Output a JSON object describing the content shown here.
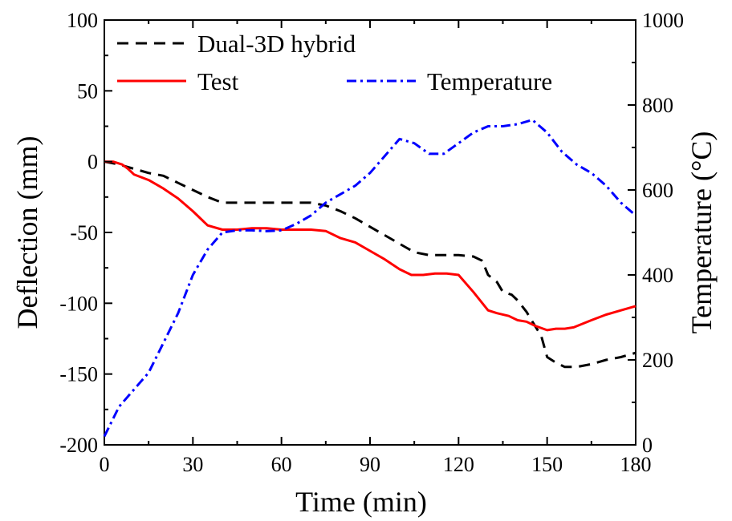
{
  "chart_data": {
    "type": "line",
    "title": "",
    "xlabel": "Time (min)",
    "ylabel": "Deflection (mm)",
    "y2label": "Temperature (°C)",
    "xlim": [
      0,
      180
    ],
    "ylim": [
      -200,
      100
    ],
    "y2lim": [
      0,
      1000
    ],
    "xticks": [
      0,
      30,
      60,
      90,
      120,
      150,
      180
    ],
    "xtick_labels": [
      "0",
      "30",
      "60",
      "90",
      "120",
      "150",
      "180"
    ],
    "yticks": [
      -200,
      -150,
      -100,
      -50,
      0,
      50,
      100
    ],
    "ytick_labels": [
      "-200",
      "-150",
      "-100",
      "-50",
      "0",
      "50",
      "100"
    ],
    "y2ticks": [
      0,
      200,
      400,
      600,
      800,
      1000
    ],
    "y2tick_labels": [
      "0",
      "200",
      "400",
      "600",
      "800",
      "1000"
    ],
    "grid": false,
    "legend_position": "top",
    "series": [
      {
        "name": "Dual-3D hybrid",
        "axis": "left",
        "color": "#000000",
        "dash": "dashed",
        "x": [
          0,
          5,
          10,
          15,
          20,
          25,
          30,
          35,
          40,
          45,
          50,
          55,
          60,
          65,
          70,
          75,
          80,
          85,
          90,
          95,
          100,
          105,
          110,
          115,
          120,
          125,
          128,
          130,
          133,
          135,
          138,
          140,
          143,
          145,
          148,
          150,
          153,
          156,
          160,
          165,
          170,
          175,
          180
        ],
        "y": [
          0,
          -2,
          -5,
          -8,
          -10,
          -15,
          -20,
          -25,
          -29,
          -29,
          -29,
          -29,
          -29,
          -29,
          -29,
          -31,
          -35,
          -40,
          -46,
          -52,
          -58,
          -64,
          -66,
          -66,
          -66,
          -67,
          -70,
          -80,
          -85,
          -92,
          -94,
          -98,
          -106,
          -113,
          -123,
          -138,
          -142,
          -145,
          -145,
          -143,
          -140,
          -138,
          -135
        ]
      },
      {
        "name": "Test",
        "axis": "left",
        "color": "#ff0000",
        "dash": "solid",
        "x": [
          0,
          3,
          6,
          8,
          10,
          15,
          20,
          25,
          30,
          35,
          40,
          45,
          50,
          55,
          60,
          65,
          70,
          75,
          80,
          85,
          90,
          95,
          100,
          104,
          108,
          112,
          116,
          120,
          125,
          130,
          133,
          137,
          140,
          143,
          146,
          150,
          153,
          156,
          159,
          165,
          170,
          175,
          180
        ],
        "y": [
          0,
          0,
          -2,
          -5,
          -9,
          -13,
          -19,
          -26,
          -35,
          -45,
          -48,
          -48,
          -47,
          -47,
          -48,
          -48,
          -48,
          -49,
          -54,
          -57,
          -63,
          -69,
          -76,
          -80,
          -80,
          -79,
          -79,
          -80,
          -92,
          -105,
          -107,
          -109,
          -112,
          -113,
          -116,
          -119,
          -118,
          -118,
          -117,
          -112,
          -108,
          -105,
          -102
        ]
      },
      {
        "name": "Temperature",
        "axis": "right",
        "color": "#0000ff",
        "dash": "dashdot",
        "x": [
          0,
          5,
          10,
          15,
          20,
          25,
          30,
          35,
          40,
          45,
          50,
          55,
          60,
          65,
          70,
          75,
          80,
          85,
          90,
          95,
          100,
          105,
          110,
          115,
          120,
          125,
          130,
          135,
          140,
          145,
          150,
          155,
          160,
          165,
          170,
          175,
          180
        ],
        "y": [
          20,
          90,
          130,
          170,
          240,
          310,
          400,
          460,
          500,
          505,
          505,
          503,
          505,
          520,
          540,
          570,
          590,
          610,
          640,
          680,
          720,
          710,
          685,
          685,
          710,
          735,
          750,
          750,
          755,
          765,
          735,
          690,
          660,
          640,
          610,
          570,
          540
        ]
      }
    ]
  }
}
